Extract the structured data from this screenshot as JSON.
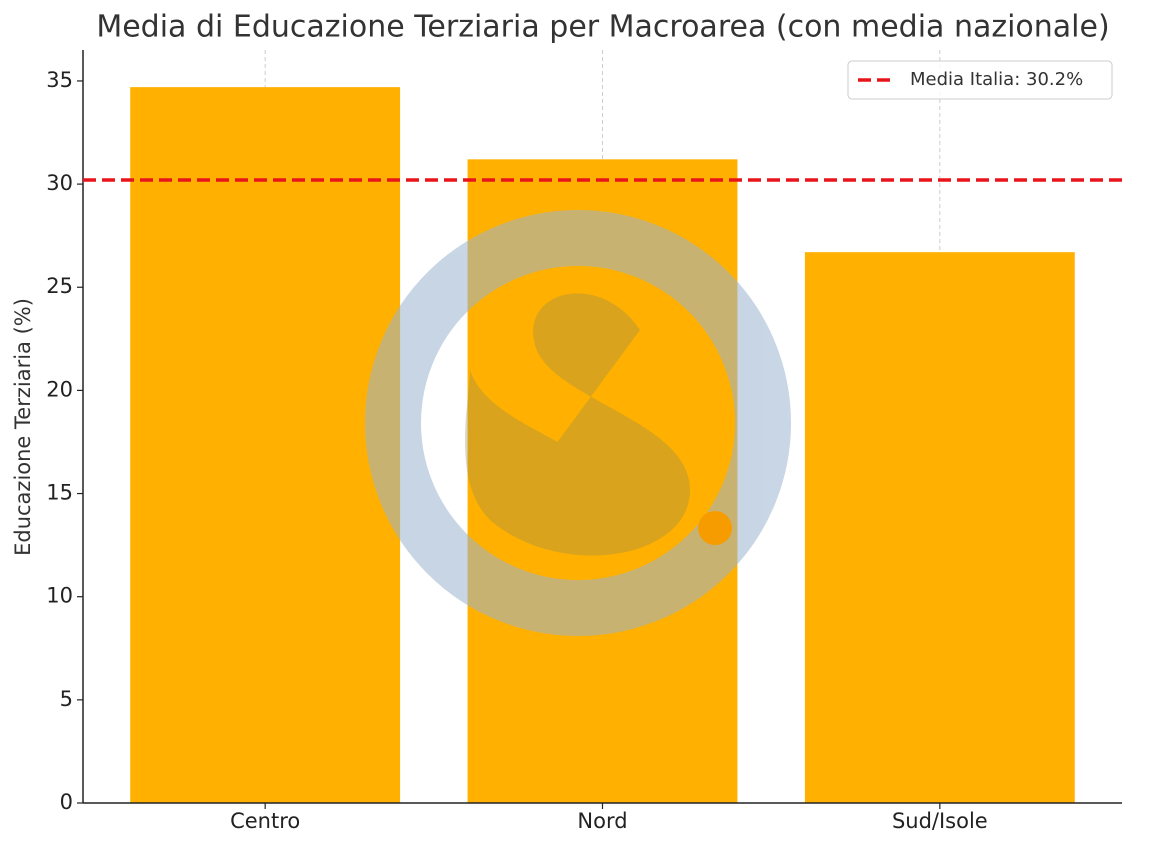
{
  "chart_data": {
    "type": "bar",
    "title": "Media di Educazione Terziaria per Macroarea (con media nazionale)",
    "y_label": "Educazione Terziaria (%)",
    "categories": [
      "Centro",
      "Nord",
      "Sud/Isole"
    ],
    "values": [
      34.7,
      31.2,
      26.7
    ],
    "color": "#ffb000",
    "ylim": [
      0,
      36.5
    ],
    "yticks": [
      0,
      5,
      10,
      15,
      20,
      25,
      30,
      35
    ],
    "grid": "x",
    "reference_line": {
      "value": 30.2,
      "label": "Media Italia: 30.2%",
      "color": "#e8141c"
    },
    "legend_position": "upper right"
  }
}
